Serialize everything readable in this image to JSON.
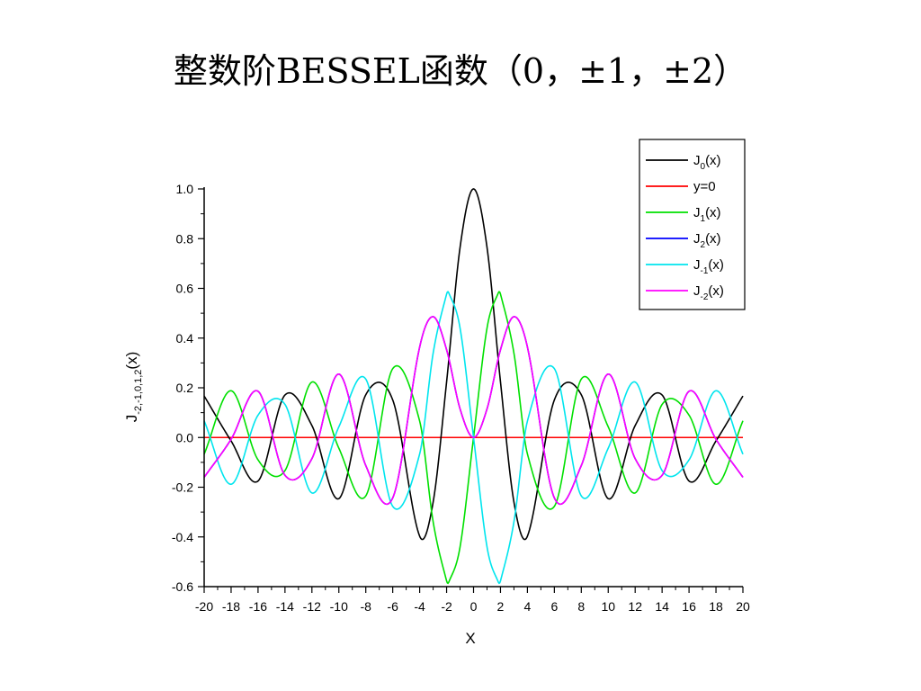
{
  "slide": {
    "title": "整数阶BESSEL函数（0，±1，±2）"
  },
  "chart_data": {
    "type": "line",
    "title": "整数阶BESSEL函数（0，±1，±2）",
    "xlabel": "X",
    "ylabel": "J_{-2,-1,0,1,2}(x)",
    "ylabel_parts": {
      "main": "J",
      "sub": "-2,-1,0,1,2",
      "tail": "(x)"
    },
    "xlim": [
      -20,
      20
    ],
    "ylim": [
      -0.6,
      1.0
    ],
    "x_ticks": [
      -20,
      -18,
      -16,
      -14,
      -12,
      -10,
      -8,
      -6,
      -4,
      -2,
      0,
      2,
      4,
      6,
      8,
      10,
      12,
      14,
      16,
      18,
      20
    ],
    "y_ticks": [
      -0.6,
      -0.4,
      -0.2,
      0.0,
      0.2,
      0.4,
      0.6,
      0.8,
      1.0
    ],
    "x_tick_labels": [
      "-20",
      "-18",
      "-16",
      "-14",
      "-12",
      "-10",
      "-8",
      "-6",
      "-4",
      "-2",
      "0",
      "2",
      "4",
      "6",
      "8",
      "10",
      "12",
      "14",
      "16",
      "18",
      "20"
    ],
    "y_tick_labels": [
      "-0.6",
      "-0.4",
      "-0.2",
      "0.0",
      "0.2",
      "0.4",
      "0.6",
      "0.8",
      "1.0"
    ],
    "grid": false,
    "legend_position": "top-right",
    "series": [
      {
        "name": "J0(x)",
        "label_main": "J",
        "label_sub": "0",
        "label_tail": "(x)",
        "color": "#000000",
        "x": [
          -20,
          -18,
          -16,
          -14,
          -12,
          -10,
          -8,
          -6,
          -4,
          -3,
          -2,
          -1,
          0,
          1,
          2,
          3,
          4,
          6,
          8,
          10,
          12,
          14,
          16,
          18,
          20
        ],
        "y": [
          0.167,
          -0.014,
          -0.175,
          0.171,
          0.048,
          -0.246,
          0.172,
          0.151,
          -0.397,
          -0.26,
          0.224,
          0.765,
          1.0,
          0.765,
          0.224,
          -0.26,
          -0.397,
          0.151,
          0.172,
          -0.246,
          0.048,
          0.171,
          -0.175,
          -0.014,
          0.167
        ]
      },
      {
        "name": "y=0",
        "label_main": "y=0",
        "label_sub": "",
        "label_tail": "",
        "color": "#ff0000",
        "x": [
          -20,
          20
        ],
        "y": [
          0,
          0
        ]
      },
      {
        "name": "J1(x)",
        "label_main": "J",
        "label_sub": "1",
        "label_tail": "(x)",
        "color": "#00e000",
        "x": [
          -20,
          -18,
          -16,
          -14,
          -12,
          -10,
          -8,
          -6,
          -4,
          -3,
          -2,
          -1.84,
          -1,
          0,
          1,
          1.84,
          2,
          3,
          4,
          6,
          8,
          10,
          12,
          14,
          16,
          18,
          20
        ],
        "y": [
          -0.067,
          0.188,
          -0.09,
          -0.133,
          0.223,
          -0.043,
          -0.235,
          0.277,
          0.066,
          -0.339,
          -0.577,
          -0.582,
          -0.44,
          0.0,
          0.44,
          0.582,
          0.577,
          0.339,
          -0.066,
          -0.277,
          0.235,
          0.043,
          -0.223,
          0.133,
          0.09,
          -0.188,
          0.067
        ]
      },
      {
        "name": "J2(x)",
        "label_main": "J",
        "label_sub": "2",
        "label_tail": "(x)",
        "color": "#0000ff",
        "x": [
          -20,
          -18,
          -16,
          -14,
          -12,
          -10,
          -8,
          -6,
          -4,
          -3,
          -2,
          -1,
          0,
          1,
          2,
          3,
          4,
          6,
          8,
          10,
          12,
          14,
          16,
          18,
          20
        ],
        "y": [
          -0.16,
          -0.007,
          0.186,
          -0.152,
          -0.085,
          0.255,
          -0.113,
          -0.243,
          0.364,
          0.486,
          0.353,
          0.115,
          0.0,
          0.115,
          0.353,
          0.486,
          0.364,
          -0.243,
          -0.113,
          0.255,
          -0.085,
          -0.152,
          0.186,
          -0.007,
          -0.16
        ]
      },
      {
        "name": "J-1(x)",
        "label_main": "J",
        "label_sub": "-1",
        "label_tail": "(x)",
        "color": "#00e5ee",
        "x": [
          -20,
          -18,
          -16,
          -14,
          -12,
          -10,
          -8,
          -6,
          -4,
          -3,
          -2,
          -1.84,
          -1,
          0,
          1,
          1.84,
          2,
          3,
          4,
          6,
          8,
          10,
          12,
          14,
          16,
          18,
          20
        ],
        "y": [
          0.067,
          -0.188,
          0.09,
          0.133,
          -0.223,
          0.043,
          0.235,
          -0.277,
          -0.066,
          0.339,
          0.577,
          0.582,
          0.44,
          0.0,
          -0.44,
          -0.582,
          -0.577,
          -0.339,
          0.066,
          0.277,
          -0.235,
          -0.043,
          0.223,
          -0.133,
          -0.09,
          0.188,
          -0.067
        ]
      },
      {
        "name": "J-2(x)",
        "label_main": "J",
        "label_sub": "-2",
        "label_tail": "(x)",
        "color": "#ff00ff",
        "x": [
          -20,
          -18,
          -16,
          -14,
          -12,
          -10,
          -8,
          -6,
          -4,
          -3,
          -2,
          -1,
          0,
          1,
          2,
          3,
          4,
          6,
          8,
          10,
          12,
          14,
          16,
          18,
          20
        ],
        "y": [
          -0.16,
          -0.007,
          0.186,
          -0.152,
          -0.085,
          0.255,
          -0.113,
          -0.243,
          0.364,
          0.486,
          0.353,
          0.115,
          0.0,
          0.115,
          0.353,
          0.486,
          0.364,
          -0.243,
          -0.113,
          0.255,
          -0.085,
          -0.152,
          0.186,
          -0.007,
          -0.16
        ]
      }
    ]
  }
}
